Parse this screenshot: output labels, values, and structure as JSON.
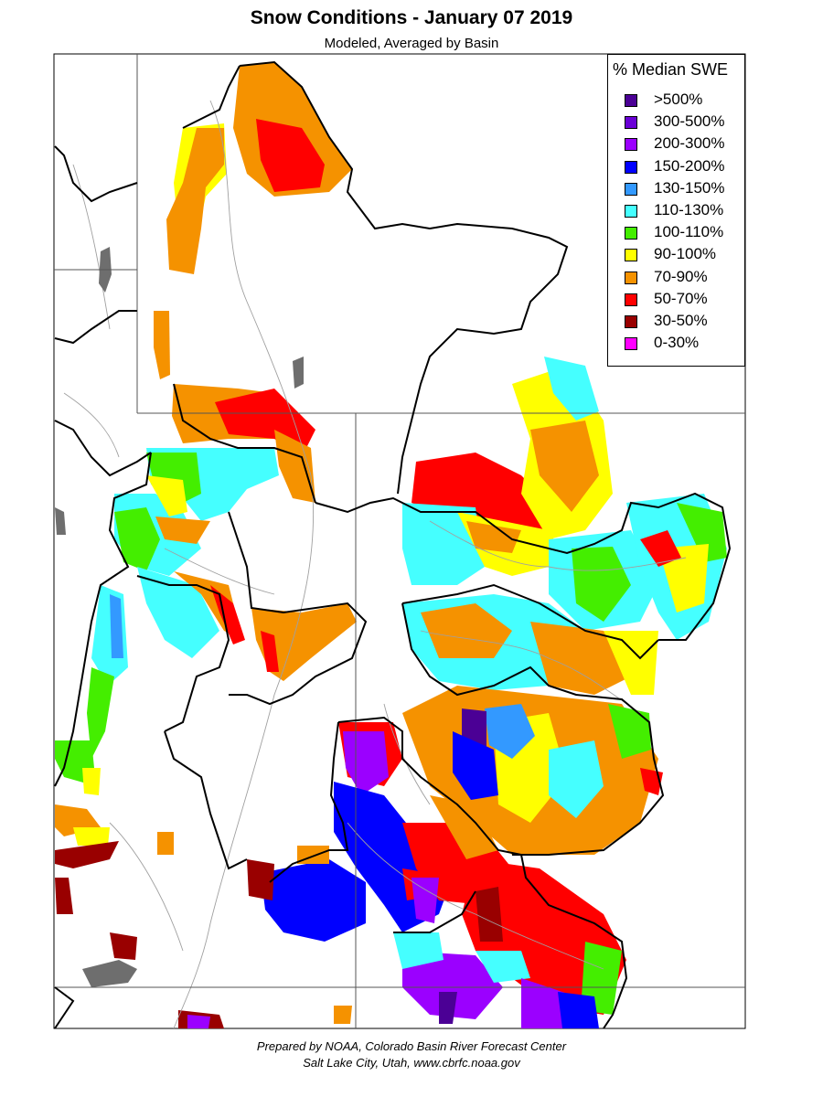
{
  "title": "Snow Conditions - January 07 2019",
  "subtitle": "Modeled, Averaged by Basin",
  "legend": {
    "title": "% Median SWE",
    "items": [
      {
        "label": ">500%",
        "color": "#4b0095"
      },
      {
        "label": "300-500%",
        "color": "#6a00d6"
      },
      {
        "label": "200-300%",
        "color": "#9b00ff"
      },
      {
        "label": "150-200%",
        "color": "#0000ff"
      },
      {
        "label": "130-150%",
        "color": "#3399ff"
      },
      {
        "label": "110-130%",
        "color": "#45ffff"
      },
      {
        "label": "100-110%",
        "color": "#44ee00"
      },
      {
        "label": "90-100%",
        "color": "#ffff00"
      },
      {
        "label": "70-90%",
        "color": "#f59200"
      },
      {
        "label": "50-70%",
        "color": "#ff0000"
      },
      {
        "label": "30-50%",
        "color": "#990000"
      },
      {
        "label": "0-30%",
        "color": "#ff00ff"
      }
    ]
  },
  "footer": {
    "line1": "Prepared by NOAA, Colorado Basin River Forecast Center",
    "line2": "Salt Lake City, Utah, www.cbrfc.noaa.gov"
  }
}
